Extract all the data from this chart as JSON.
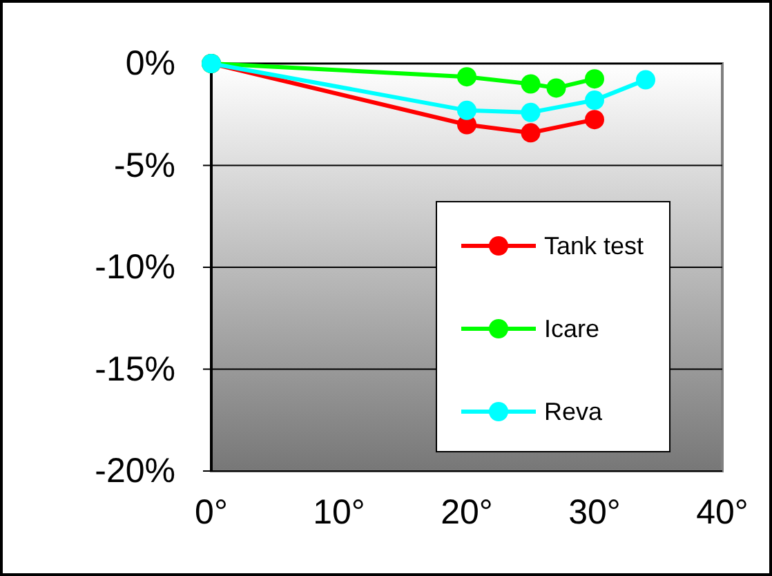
{
  "chart_data": {
    "type": "line",
    "series": [
      {
        "name": "Tank test",
        "color": "#ff0000",
        "x": [
          0,
          20,
          25,
          30
        ],
        "values": [
          0,
          -3.0,
          -3.4,
          -2.75
        ]
      },
      {
        "name": "Icare",
        "color": "#00ff00",
        "x": [
          0,
          20,
          25,
          27,
          30
        ],
        "values": [
          0,
          -0.65,
          -1.0,
          -1.2,
          -0.75
        ]
      },
      {
        "name": "Reva",
        "color": "#00ffff",
        "x": [
          0,
          20,
          25,
          30,
          34
        ],
        "values": [
          0,
          -2.3,
          -2.4,
          -1.8,
          -0.8
        ]
      }
    ],
    "xlim": [
      0,
      40
    ],
    "xticks": [
      {
        "value": 0,
        "label": "0°"
      },
      {
        "value": 10,
        "label": "10°"
      },
      {
        "value": 20,
        "label": "20°"
      },
      {
        "value": 30,
        "label": "30°"
      },
      {
        "value": 40,
        "label": "40°"
      }
    ],
    "ylim": [
      -20,
      0
    ],
    "yticks": [
      {
        "value": -20,
        "label": "-20%"
      },
      {
        "value": -15,
        "label": "-15%"
      },
      {
        "value": -10,
        "label": "-10%"
      },
      {
        "value": -5,
        "label": "-5%"
      },
      {
        "value": 0,
        "label": "0%"
      }
    ],
    "grid": "y",
    "legend": "bottom right",
    "marker": "circle",
    "line_style": "solid"
  }
}
